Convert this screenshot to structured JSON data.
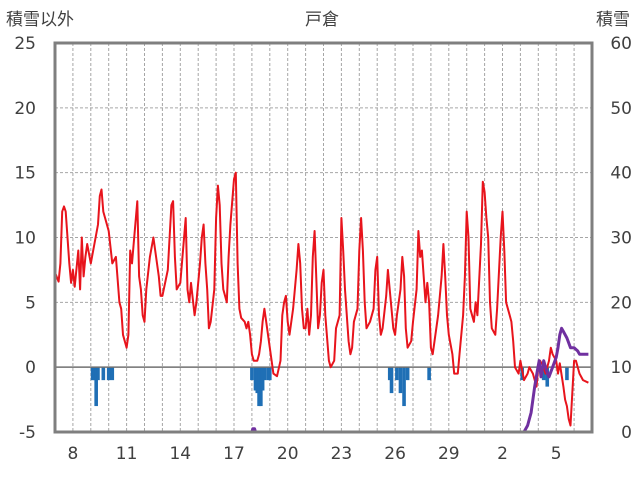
{
  "title": "戸倉",
  "left_axis_title": "積雪以外",
  "right_axis_title": "積雪",
  "chart_data": {
    "type": "line",
    "title": "戸倉",
    "ylabel_left": "積雪以外",
    "ylabel_right": "積雪",
    "ylim_left": [
      -5,
      25
    ],
    "ylim_right": [
      0,
      60
    ],
    "yticks_left": [
      25,
      20,
      15,
      10,
      5,
      0,
      -5
    ],
    "yticks_right": [
      60,
      50,
      40,
      30,
      20,
      10,
      0
    ],
    "x_range_days": [
      0,
      30
    ],
    "x_ticks": [
      {
        "day": 1,
        "label": "8"
      },
      {
        "day": 4,
        "label": "11"
      },
      {
        "day": 7,
        "label": "14"
      },
      {
        "day": 10,
        "label": "17"
      },
      {
        "day": 13,
        "label": "20"
      },
      {
        "day": 16,
        "label": "23"
      },
      {
        "day": 19,
        "label": "26"
      },
      {
        "day": 22,
        "label": "29"
      },
      {
        "day": 25,
        "label": "2"
      },
      {
        "day": 28,
        "label": "5"
      }
    ],
    "grid": true,
    "colors": {
      "temperature": "#e8141c",
      "precipitation": "#1f6fb5",
      "snow_depth": "#7030a0",
      "frame": "#7f7f7f",
      "grid": "#a6a6a6",
      "zero_line": "#707070"
    },
    "series": [
      {
        "key": "temperature",
        "axis": "left",
        "kind": "line",
        "points": [
          [
            0.0,
            7.3
          ],
          [
            0.2,
            6.6
          ],
          [
            0.3,
            8.0
          ],
          [
            0.4,
            12.0
          ],
          [
            0.5,
            12.4
          ],
          [
            0.6,
            12.0
          ],
          [
            0.8,
            8.0
          ],
          [
            0.9,
            6.5
          ],
          [
            1.0,
            7.5
          ],
          [
            1.1,
            6.2
          ],
          [
            1.3,
            9.0
          ],
          [
            1.4,
            6.0
          ],
          [
            1.5,
            10.0
          ],
          [
            1.6,
            7.0
          ],
          [
            1.7,
            8.5
          ],
          [
            1.8,
            9.5
          ],
          [
            2.0,
            8.0
          ],
          [
            2.2,
            9.5
          ],
          [
            2.4,
            11.0
          ],
          [
            2.5,
            13.2
          ],
          [
            2.6,
            13.7
          ],
          [
            2.7,
            12.0
          ],
          [
            2.8,
            11.5
          ],
          [
            3.0,
            10.5
          ],
          [
            3.2,
            8.0
          ],
          [
            3.4,
            8.5
          ],
          [
            3.6,
            5.0
          ],
          [
            3.7,
            4.5
          ],
          [
            3.8,
            2.5
          ],
          [
            4.0,
            1.5
          ],
          [
            4.1,
            2.5
          ],
          [
            4.2,
            9.0
          ],
          [
            4.3,
            8.0
          ],
          [
            4.6,
            12.8
          ],
          [
            4.7,
            7.0
          ],
          [
            4.8,
            6.0
          ],
          [
            4.9,
            4.0
          ],
          [
            5.0,
            3.5
          ],
          [
            5.1,
            6.0
          ],
          [
            5.3,
            8.5
          ],
          [
            5.5,
            10.0
          ],
          [
            5.6,
            9.0
          ],
          [
            5.8,
            7.0
          ],
          [
            5.9,
            5.5
          ],
          [
            6.0,
            5.5
          ],
          [
            6.3,
            7.5
          ],
          [
            6.5,
            12.5
          ],
          [
            6.6,
            12.8
          ],
          [
            6.7,
            8.5
          ],
          [
            6.8,
            6.0
          ],
          [
            7.0,
            6.5
          ],
          [
            7.3,
            11.5
          ],
          [
            7.4,
            6.0
          ],
          [
            7.5,
            5.0
          ],
          [
            7.6,
            6.5
          ],
          [
            7.8,
            4.0
          ],
          [
            7.9,
            5.0
          ],
          [
            8.1,
            8.0
          ],
          [
            8.2,
            10.0
          ],
          [
            8.3,
            11.0
          ],
          [
            8.4,
            8.0
          ],
          [
            8.5,
            6.0
          ],
          [
            8.6,
            3.0
          ],
          [
            8.7,
            3.5
          ],
          [
            8.9,
            6.0
          ],
          [
            9.0,
            11.5
          ],
          [
            9.1,
            14.0
          ],
          [
            9.2,
            12.5
          ],
          [
            9.3,
            8.0
          ],
          [
            9.4,
            6.0
          ],
          [
            9.6,
            5.0
          ],
          [
            9.7,
            8.5
          ],
          [
            9.8,
            11.0
          ],
          [
            10.0,
            14.5
          ],
          [
            10.1,
            15.0
          ],
          [
            10.2,
            8.0
          ],
          [
            10.3,
            4.5
          ],
          [
            10.4,
            3.8
          ],
          [
            10.6,
            3.5
          ],
          [
            10.7,
            3.0
          ],
          [
            10.8,
            3.5
          ],
          [
            10.9,
            2.5
          ],
          [
            11.0,
            1.0
          ],
          [
            11.1,
            0.5
          ],
          [
            11.3,
            0.5
          ],
          [
            11.4,
            1.0
          ],
          [
            11.5,
            2.0
          ],
          [
            11.6,
            3.5
          ],
          [
            11.7,
            4.5
          ],
          [
            11.8,
            3.5
          ],
          [
            11.9,
            2.5
          ],
          [
            12.1,
            0.5
          ],
          [
            12.2,
            -0.5
          ],
          [
            12.4,
            -0.7
          ],
          [
            12.6,
            0.5
          ],
          [
            12.7,
            4.0
          ],
          [
            12.8,
            5.0
          ],
          [
            12.9,
            5.5
          ],
          [
            13.0,
            3.5
          ],
          [
            13.1,
            2.5
          ],
          [
            13.3,
            4.5
          ],
          [
            13.5,
            7.5
          ],
          [
            13.6,
            9.5
          ],
          [
            13.7,
            8.0
          ],
          [
            13.8,
            4.5
          ],
          [
            13.9,
            3.0
          ],
          [
            14.0,
            3.0
          ],
          [
            14.1,
            4.5
          ],
          [
            14.2,
            2.5
          ],
          [
            14.3,
            4.0
          ],
          [
            14.4,
            8.5
          ],
          [
            14.5,
            10.5
          ],
          [
            14.7,
            3.0
          ],
          [
            14.8,
            4.0
          ],
          [
            14.9,
            6.5
          ],
          [
            15.0,
            7.5
          ],
          [
            15.1,
            4.0
          ],
          [
            15.3,
            0.5
          ],
          [
            15.4,
            0.0
          ],
          [
            15.6,
            0.5
          ],
          [
            15.7,
            3.0
          ],
          [
            15.9,
            4.0
          ],
          [
            16.0,
            11.5
          ],
          [
            16.1,
            9.0
          ],
          [
            16.2,
            6.0
          ],
          [
            16.4,
            2.0
          ],
          [
            16.5,
            1.0
          ],
          [
            16.6,
            1.5
          ],
          [
            16.7,
            3.5
          ],
          [
            16.9,
            4.5
          ],
          [
            17.0,
            9.0
          ],
          [
            17.1,
            11.5
          ],
          [
            17.2,
            9.0
          ],
          [
            17.3,
            5.0
          ],
          [
            17.4,
            3.0
          ],
          [
            17.6,
            3.5
          ],
          [
            17.8,
            4.5
          ],
          [
            17.9,
            7.5
          ],
          [
            18.0,
            8.5
          ],
          [
            18.1,
            4.0
          ],
          [
            18.2,
            2.5
          ],
          [
            18.3,
            3.0
          ],
          [
            18.5,
            5.5
          ],
          [
            18.6,
            7.5
          ],
          [
            18.7,
            6.0
          ],
          [
            18.8,
            4.5
          ],
          [
            18.9,
            3.0
          ],
          [
            19.0,
            2.5
          ],
          [
            19.1,
            4.0
          ],
          [
            19.3,
            6.0
          ],
          [
            19.4,
            8.5
          ],
          [
            19.5,
            7.0
          ],
          [
            19.6,
            3.0
          ],
          [
            19.7,
            1.5
          ],
          [
            19.9,
            2.0
          ],
          [
            20.0,
            3.5
          ],
          [
            20.2,
            6.0
          ],
          [
            20.3,
            10.5
          ],
          [
            20.4,
            8.5
          ],
          [
            20.5,
            9.0
          ],
          [
            20.6,
            7.0
          ],
          [
            20.7,
            5.0
          ],
          [
            20.8,
            6.5
          ],
          [
            20.9,
            5.0
          ],
          [
            21.0,
            1.5
          ],
          [
            21.1,
            1.0
          ],
          [
            21.2,
            2.0
          ],
          [
            21.4,
            4.0
          ],
          [
            21.6,
            7.0
          ],
          [
            21.7,
            9.5
          ],
          [
            21.8,
            7.0
          ],
          [
            21.9,
            4.0
          ],
          [
            22.0,
            2.5
          ],
          [
            22.2,
            1.0
          ],
          [
            22.3,
            -0.5
          ],
          [
            22.5,
            -0.5
          ],
          [
            22.6,
            1.0
          ],
          [
            22.8,
            4.0
          ],
          [
            22.9,
            7.0
          ],
          [
            23.0,
            12.0
          ],
          [
            23.1,
            10.0
          ],
          [
            23.2,
            4.5
          ],
          [
            23.4,
            3.5
          ],
          [
            23.5,
            5.0
          ],
          [
            23.6,
            4.0
          ],
          [
            23.8,
            9.5
          ],
          [
            23.9,
            14.3
          ],
          [
            24.0,
            13.5
          ],
          [
            24.1,
            11.5
          ],
          [
            24.2,
            10.0
          ],
          [
            24.3,
            5.0
          ],
          [
            24.4,
            3.0
          ],
          [
            24.6,
            2.5
          ],
          [
            24.7,
            4.5
          ],
          [
            24.9,
            10.0
          ],
          [
            25.0,
            12.0
          ],
          [
            25.1,
            9.0
          ],
          [
            25.2,
            5.0
          ],
          [
            25.4,
            4.0
          ],
          [
            25.5,
            3.5
          ],
          [
            25.6,
            2.0
          ],
          [
            25.7,
            0.0
          ],
          [
            25.9,
            -0.5
          ],
          [
            26.0,
            0.5
          ],
          [
            26.2,
            -1.0
          ],
          [
            26.4,
            -0.5
          ],
          [
            26.5,
            0.0
          ],
          [
            26.7,
            -0.5
          ],
          [
            26.8,
            -1.0
          ],
          [
            26.9,
            -1.5
          ],
          [
            27.0,
            0.0
          ],
          [
            27.1,
            0.5
          ],
          [
            27.3,
            0.0
          ],
          [
            27.4,
            -0.5
          ],
          [
            27.6,
            0.5
          ],
          [
            27.7,
            1.5
          ],
          [
            27.8,
            1.0
          ],
          [
            28.0,
            0.5
          ],
          [
            28.1,
            -0.5
          ],
          [
            28.2,
            0.3
          ],
          [
            28.4,
            -1.5
          ],
          [
            28.5,
            -2.5
          ],
          [
            28.6,
            -3.0
          ],
          [
            28.7,
            -4.0
          ],
          [
            28.8,
            -4.5
          ],
          [
            28.9,
            -2.0
          ],
          [
            29.0,
            0.5
          ],
          [
            29.1,
            0.5
          ],
          [
            29.3,
            -0.5
          ],
          [
            29.5,
            -1.0
          ],
          [
            29.8,
            -1.2
          ]
        ]
      },
      {
        "key": "precipitation",
        "axis": "left",
        "kind": "bar",
        "points": [
          [
            2.1,
            -1.0
          ],
          [
            2.2,
            -1.0
          ],
          [
            2.3,
            -3.0
          ],
          [
            2.4,
            -1.0
          ],
          [
            2.7,
            -1.0
          ],
          [
            3.0,
            -1.0
          ],
          [
            3.2,
            -1.0
          ],
          [
            11.0,
            -1.0
          ],
          [
            11.2,
            -1.8
          ],
          [
            11.3,
            -2.0
          ],
          [
            11.4,
            -3.0
          ],
          [
            11.5,
            -3.0
          ],
          [
            11.6,
            -1.8
          ],
          [
            11.7,
            -1.0
          ],
          [
            11.9,
            -1.0
          ],
          [
            12.0,
            -1.0
          ],
          [
            18.7,
            -1.0
          ],
          [
            18.8,
            -2.0
          ],
          [
            19.1,
            -1.0
          ],
          [
            19.3,
            -2.0
          ],
          [
            19.5,
            -3.0
          ],
          [
            19.7,
            -1.0
          ],
          [
            20.9,
            -1.0
          ],
          [
            26.1,
            -1.0
          ],
          [
            27.3,
            -1.0
          ],
          [
            27.5,
            -1.5
          ],
          [
            28.6,
            -1.0
          ]
        ]
      },
      {
        "key": "snow_depth",
        "axis": "right",
        "kind": "line",
        "points": [
          [
            0.0,
            0.0
          ],
          [
            11.0,
            0.0
          ],
          [
            11.05,
            0.5
          ],
          [
            11.15,
            0.5
          ],
          [
            11.2,
            0.0
          ],
          [
            26.2,
            0.0
          ],
          [
            26.4,
            1.0
          ],
          [
            26.6,
            3.0
          ],
          [
            26.8,
            7.0
          ],
          [
            26.95,
            9.5
          ],
          [
            27.05,
            11.0
          ],
          [
            27.15,
            8.5
          ],
          [
            27.3,
            11.0
          ],
          [
            27.45,
            9.5
          ],
          [
            27.6,
            8.5
          ],
          [
            27.8,
            10.0
          ],
          [
            28.0,
            11.5
          ],
          [
            28.1,
            13.0
          ],
          [
            28.2,
            15.0
          ],
          [
            28.3,
            16.0
          ],
          [
            28.4,
            15.5
          ],
          [
            28.6,
            14.5
          ],
          [
            28.8,
            13.0
          ],
          [
            29.0,
            13.0
          ],
          [
            29.2,
            12.5
          ],
          [
            29.3,
            12.0
          ],
          [
            29.5,
            12.0
          ],
          [
            29.8,
            12.0
          ]
        ]
      }
    ]
  }
}
